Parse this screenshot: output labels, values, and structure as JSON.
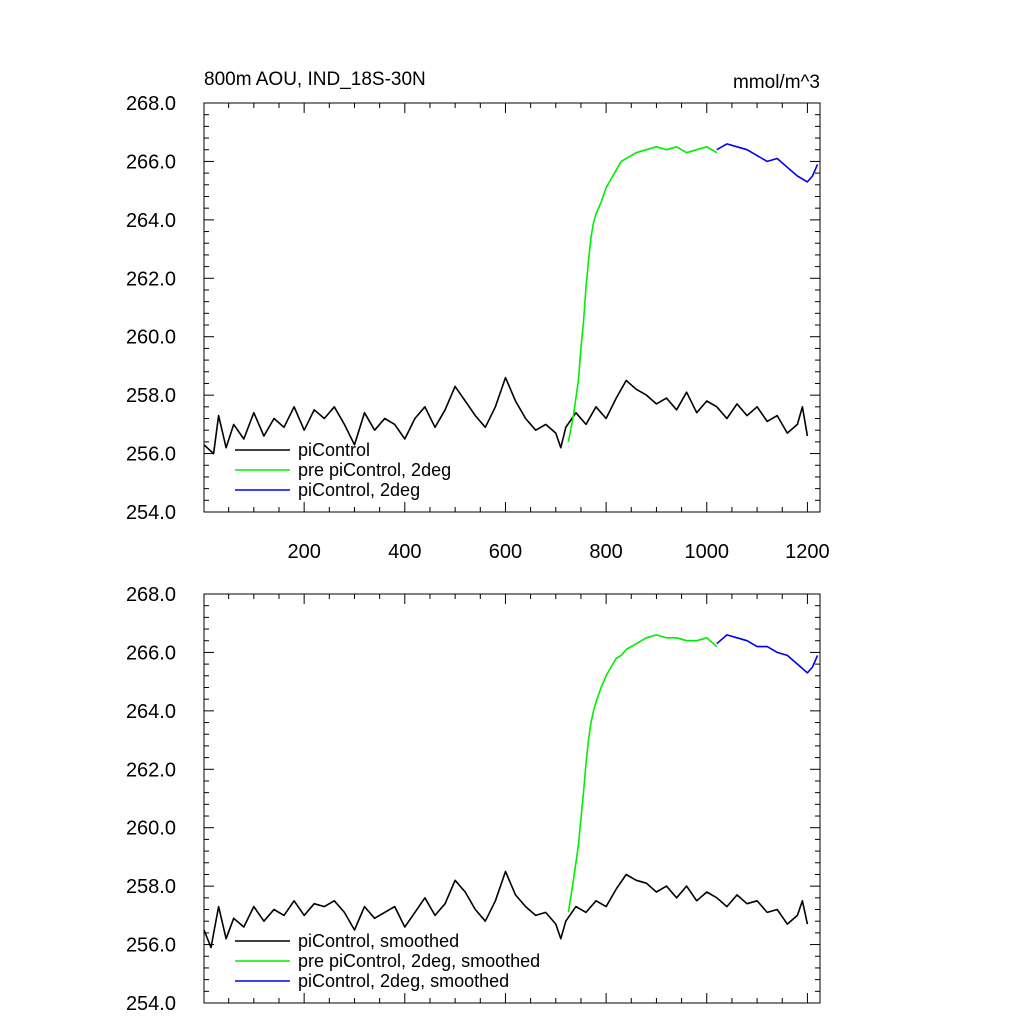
{
  "figure": {
    "title": "800m AOU, IND_18S-30N",
    "units": "mmol/m^3"
  },
  "chart_data": [
    {
      "type": "line",
      "title": "800m AOU, IND_18S-30N",
      "units_label": "mmol/m^3",
      "xlabel": "",
      "ylabel": "",
      "xlim": [
        1,
        1225
      ],
      "ylim": [
        254,
        268
      ],
      "x_ticks": [
        200,
        400,
        600,
        800,
        1000,
        1200
      ],
      "x_tick_labels": [
        "200",
        "400",
        "600",
        "800",
        "1000",
        "1200"
      ],
      "y_ticks": [
        254,
        256,
        258,
        260,
        262,
        264,
        266,
        268
      ],
      "y_tick_labels": [
        "254.0",
        "256.0",
        "258.0",
        "260.0",
        "262.0",
        "264.0",
        "266.0",
        "268.0"
      ],
      "grid": false,
      "legend_position": "bottom-left",
      "series": [
        {
          "name": "piControl",
          "color": "#000000",
          "points": [
            [
              1,
              256.3
            ],
            [
              20,
              256.0
            ],
            [
              30,
              257.3
            ],
            [
              45,
              256.2
            ],
            [
              60,
              257.0
            ],
            [
              80,
              256.5
            ],
            [
              100,
              257.4
            ],
            [
              120,
              256.6
            ],
            [
              140,
              257.2
            ],
            [
              160,
              256.9
            ],
            [
              180,
              257.6
            ],
            [
              200,
              256.8
            ],
            [
              220,
              257.5
            ],
            [
              240,
              257.2
            ],
            [
              260,
              257.6
            ],
            [
              280,
              257.0
            ],
            [
              300,
              256.3
            ],
            [
              320,
              257.4
            ],
            [
              340,
              256.8
            ],
            [
              360,
              257.2
            ],
            [
              380,
              257.0
            ],
            [
              400,
              256.5
            ],
            [
              420,
              257.2
            ],
            [
              440,
              257.6
            ],
            [
              460,
              256.9
            ],
            [
              480,
              257.5
            ],
            [
              500,
              258.3
            ],
            [
              520,
              257.8
            ],
            [
              540,
              257.3
            ],
            [
              560,
              256.9
            ],
            [
              580,
              257.6
            ],
            [
              600,
              258.6
            ],
            [
              620,
              257.8
            ],
            [
              640,
              257.2
            ],
            [
              660,
              256.8
            ],
            [
              680,
              257.0
            ],
            [
              700,
              256.7
            ],
            [
              710,
              256.2
            ],
            [
              720,
              256.9
            ],
            [
              740,
              257.4
            ],
            [
              760,
              257.0
            ],
            [
              780,
              257.6
            ],
            [
              800,
              257.2
            ],
            [
              820,
              257.9
            ],
            [
              840,
              258.5
            ],
            [
              860,
              258.2
            ],
            [
              880,
              258.0
            ],
            [
              900,
              257.7
            ],
            [
              920,
              257.9
            ],
            [
              940,
              257.5
            ],
            [
              960,
              258.1
            ],
            [
              980,
              257.4
            ],
            [
              1000,
              257.8
            ],
            [
              1020,
              257.6
            ],
            [
              1040,
              257.2
            ],
            [
              1060,
              257.7
            ],
            [
              1080,
              257.3
            ],
            [
              1100,
              257.6
            ],
            [
              1120,
              257.1
            ],
            [
              1140,
              257.3
            ],
            [
              1160,
              256.7
            ],
            [
              1180,
              257.0
            ],
            [
              1190,
              257.6
            ],
            [
              1200,
              256.6
            ]
          ]
        },
        {
          "name": "pre piControl, 2deg",
          "color": "#00ee00",
          "points": [
            [
              725,
              256.4
            ],
            [
              735,
              257.3
            ],
            [
              745,
              258.5
            ],
            [
              750,
              259.6
            ],
            [
              755,
              260.5
            ],
            [
              760,
              261.7
            ],
            [
              765,
              262.6
            ],
            [
              770,
              263.4
            ],
            [
              775,
              263.9
            ],
            [
              780,
              264.2
            ],
            [
              790,
              264.6
            ],
            [
              800,
              265.1
            ],
            [
              810,
              265.4
            ],
            [
              820,
              265.7
            ],
            [
              830,
              266.0
            ],
            [
              840,
              266.1
            ],
            [
              860,
              266.3
            ],
            [
              880,
              266.4
            ],
            [
              900,
              266.5
            ],
            [
              920,
              266.4
            ],
            [
              940,
              266.5
            ],
            [
              960,
              266.3
            ],
            [
              980,
              266.4
            ],
            [
              1000,
              266.5
            ],
            [
              1020,
              266.3
            ]
          ]
        },
        {
          "name": "piControl, 2deg",
          "color": "#0000ee",
          "points": [
            [
              1020,
              266.4
            ],
            [
              1040,
              266.6
            ],
            [
              1060,
              266.5
            ],
            [
              1080,
              266.4
            ],
            [
              1100,
              266.2
            ],
            [
              1120,
              266.0
            ],
            [
              1140,
              266.1
            ],
            [
              1160,
              265.8
            ],
            [
              1180,
              265.5
            ],
            [
              1200,
              265.3
            ],
            [
              1210,
              265.5
            ],
            [
              1220,
              265.9
            ]
          ]
        }
      ]
    },
    {
      "type": "line",
      "title": "",
      "xlabel": "",
      "ylabel": "",
      "xlim": [
        1,
        1225
      ],
      "ylim": [
        254,
        268
      ],
      "x_ticks": [
        200,
        400,
        600,
        800,
        1000,
        1200
      ],
      "y_ticks": [
        254,
        256,
        258,
        260,
        262,
        264,
        266,
        268
      ],
      "y_tick_labels": [
        "254.0",
        "256.0",
        "258.0",
        "260.0",
        "262.0",
        "264.0",
        "266.0",
        "268.0"
      ],
      "grid": false,
      "legend_position": "bottom-left",
      "series": [
        {
          "name": "piControl, smoothed",
          "color": "#000000",
          "points": [
            [
              1,
              256.5
            ],
            [
              15,
              255.9
            ],
            [
              30,
              257.3
            ],
            [
              45,
              256.2
            ],
            [
              60,
              256.9
            ],
            [
              80,
              256.6
            ],
            [
              100,
              257.3
            ],
            [
              120,
              256.8
            ],
            [
              140,
              257.2
            ],
            [
              160,
              257.0
            ],
            [
              180,
              257.5
            ],
            [
              200,
              257.0
            ],
            [
              220,
              257.4
            ],
            [
              240,
              257.3
            ],
            [
              260,
              257.5
            ],
            [
              280,
              257.1
            ],
            [
              300,
              256.5
            ],
            [
              320,
              257.3
            ],
            [
              340,
              256.9
            ],
            [
              360,
              257.1
            ],
            [
              380,
              257.3
            ],
            [
              400,
              256.6
            ],
            [
              420,
              257.1
            ],
            [
              440,
              257.6
            ],
            [
              460,
              257.0
            ],
            [
              480,
              257.4
            ],
            [
              500,
              258.2
            ],
            [
              520,
              257.8
            ],
            [
              540,
              257.2
            ],
            [
              560,
              256.8
            ],
            [
              580,
              257.5
            ],
            [
              600,
              258.5
            ],
            [
              620,
              257.7
            ],
            [
              640,
              257.3
            ],
            [
              660,
              257.0
            ],
            [
              680,
              257.1
            ],
            [
              700,
              256.7
            ],
            [
              710,
              256.2
            ],
            [
              720,
              256.8
            ],
            [
              740,
              257.3
            ],
            [
              760,
              257.1
            ],
            [
              780,
              257.5
            ],
            [
              800,
              257.3
            ],
            [
              820,
              257.9
            ],
            [
              840,
              258.4
            ],
            [
              860,
              258.2
            ],
            [
              880,
              258.1
            ],
            [
              900,
              257.8
            ],
            [
              920,
              258.0
            ],
            [
              940,
              257.6
            ],
            [
              960,
              258.0
            ],
            [
              980,
              257.5
            ],
            [
              1000,
              257.8
            ],
            [
              1020,
              257.6
            ],
            [
              1040,
              257.3
            ],
            [
              1060,
              257.7
            ],
            [
              1080,
              257.4
            ],
            [
              1100,
              257.5
            ],
            [
              1120,
              257.1
            ],
            [
              1140,
              257.2
            ],
            [
              1160,
              256.7
            ],
            [
              1180,
              257.0
            ],
            [
              1190,
              257.5
            ],
            [
              1200,
              256.7
            ]
          ]
        },
        {
          "name": "pre piControl, 2deg, smoothed",
          "color": "#00ee00",
          "points": [
            [
              725,
              257.1
            ],
            [
              735,
              258.2
            ],
            [
              745,
              259.4
            ],
            [
              750,
              260.3
            ],
            [
              755,
              261.2
            ],
            [
              760,
              262.2
            ],
            [
              765,
              263.0
            ],
            [
              770,
              263.6
            ],
            [
              775,
              264.0
            ],
            [
              780,
              264.3
            ],
            [
              790,
              264.8
            ],
            [
              800,
              265.2
            ],
            [
              810,
              265.5
            ],
            [
              820,
              265.8
            ],
            [
              830,
              265.9
            ],
            [
              840,
              266.1
            ],
            [
              860,
              266.3
            ],
            [
              880,
              266.5
            ],
            [
              900,
              266.6
            ],
            [
              920,
              266.5
            ],
            [
              940,
              266.5
            ],
            [
              960,
              266.4
            ],
            [
              980,
              266.4
            ],
            [
              1000,
              266.5
            ],
            [
              1020,
              266.2
            ]
          ]
        },
        {
          "name": "piControl, 2deg, smoothed",
          "color": "#0000ee",
          "points": [
            [
              1020,
              266.3
            ],
            [
              1040,
              266.6
            ],
            [
              1060,
              266.5
            ],
            [
              1080,
              266.4
            ],
            [
              1100,
              266.2
            ],
            [
              1120,
              266.2
            ],
            [
              1140,
              266.0
            ],
            [
              1160,
              265.9
            ],
            [
              1180,
              265.6
            ],
            [
              1200,
              265.3
            ],
            [
              1210,
              265.5
            ],
            [
              1220,
              265.9
            ]
          ]
        }
      ]
    }
  ]
}
